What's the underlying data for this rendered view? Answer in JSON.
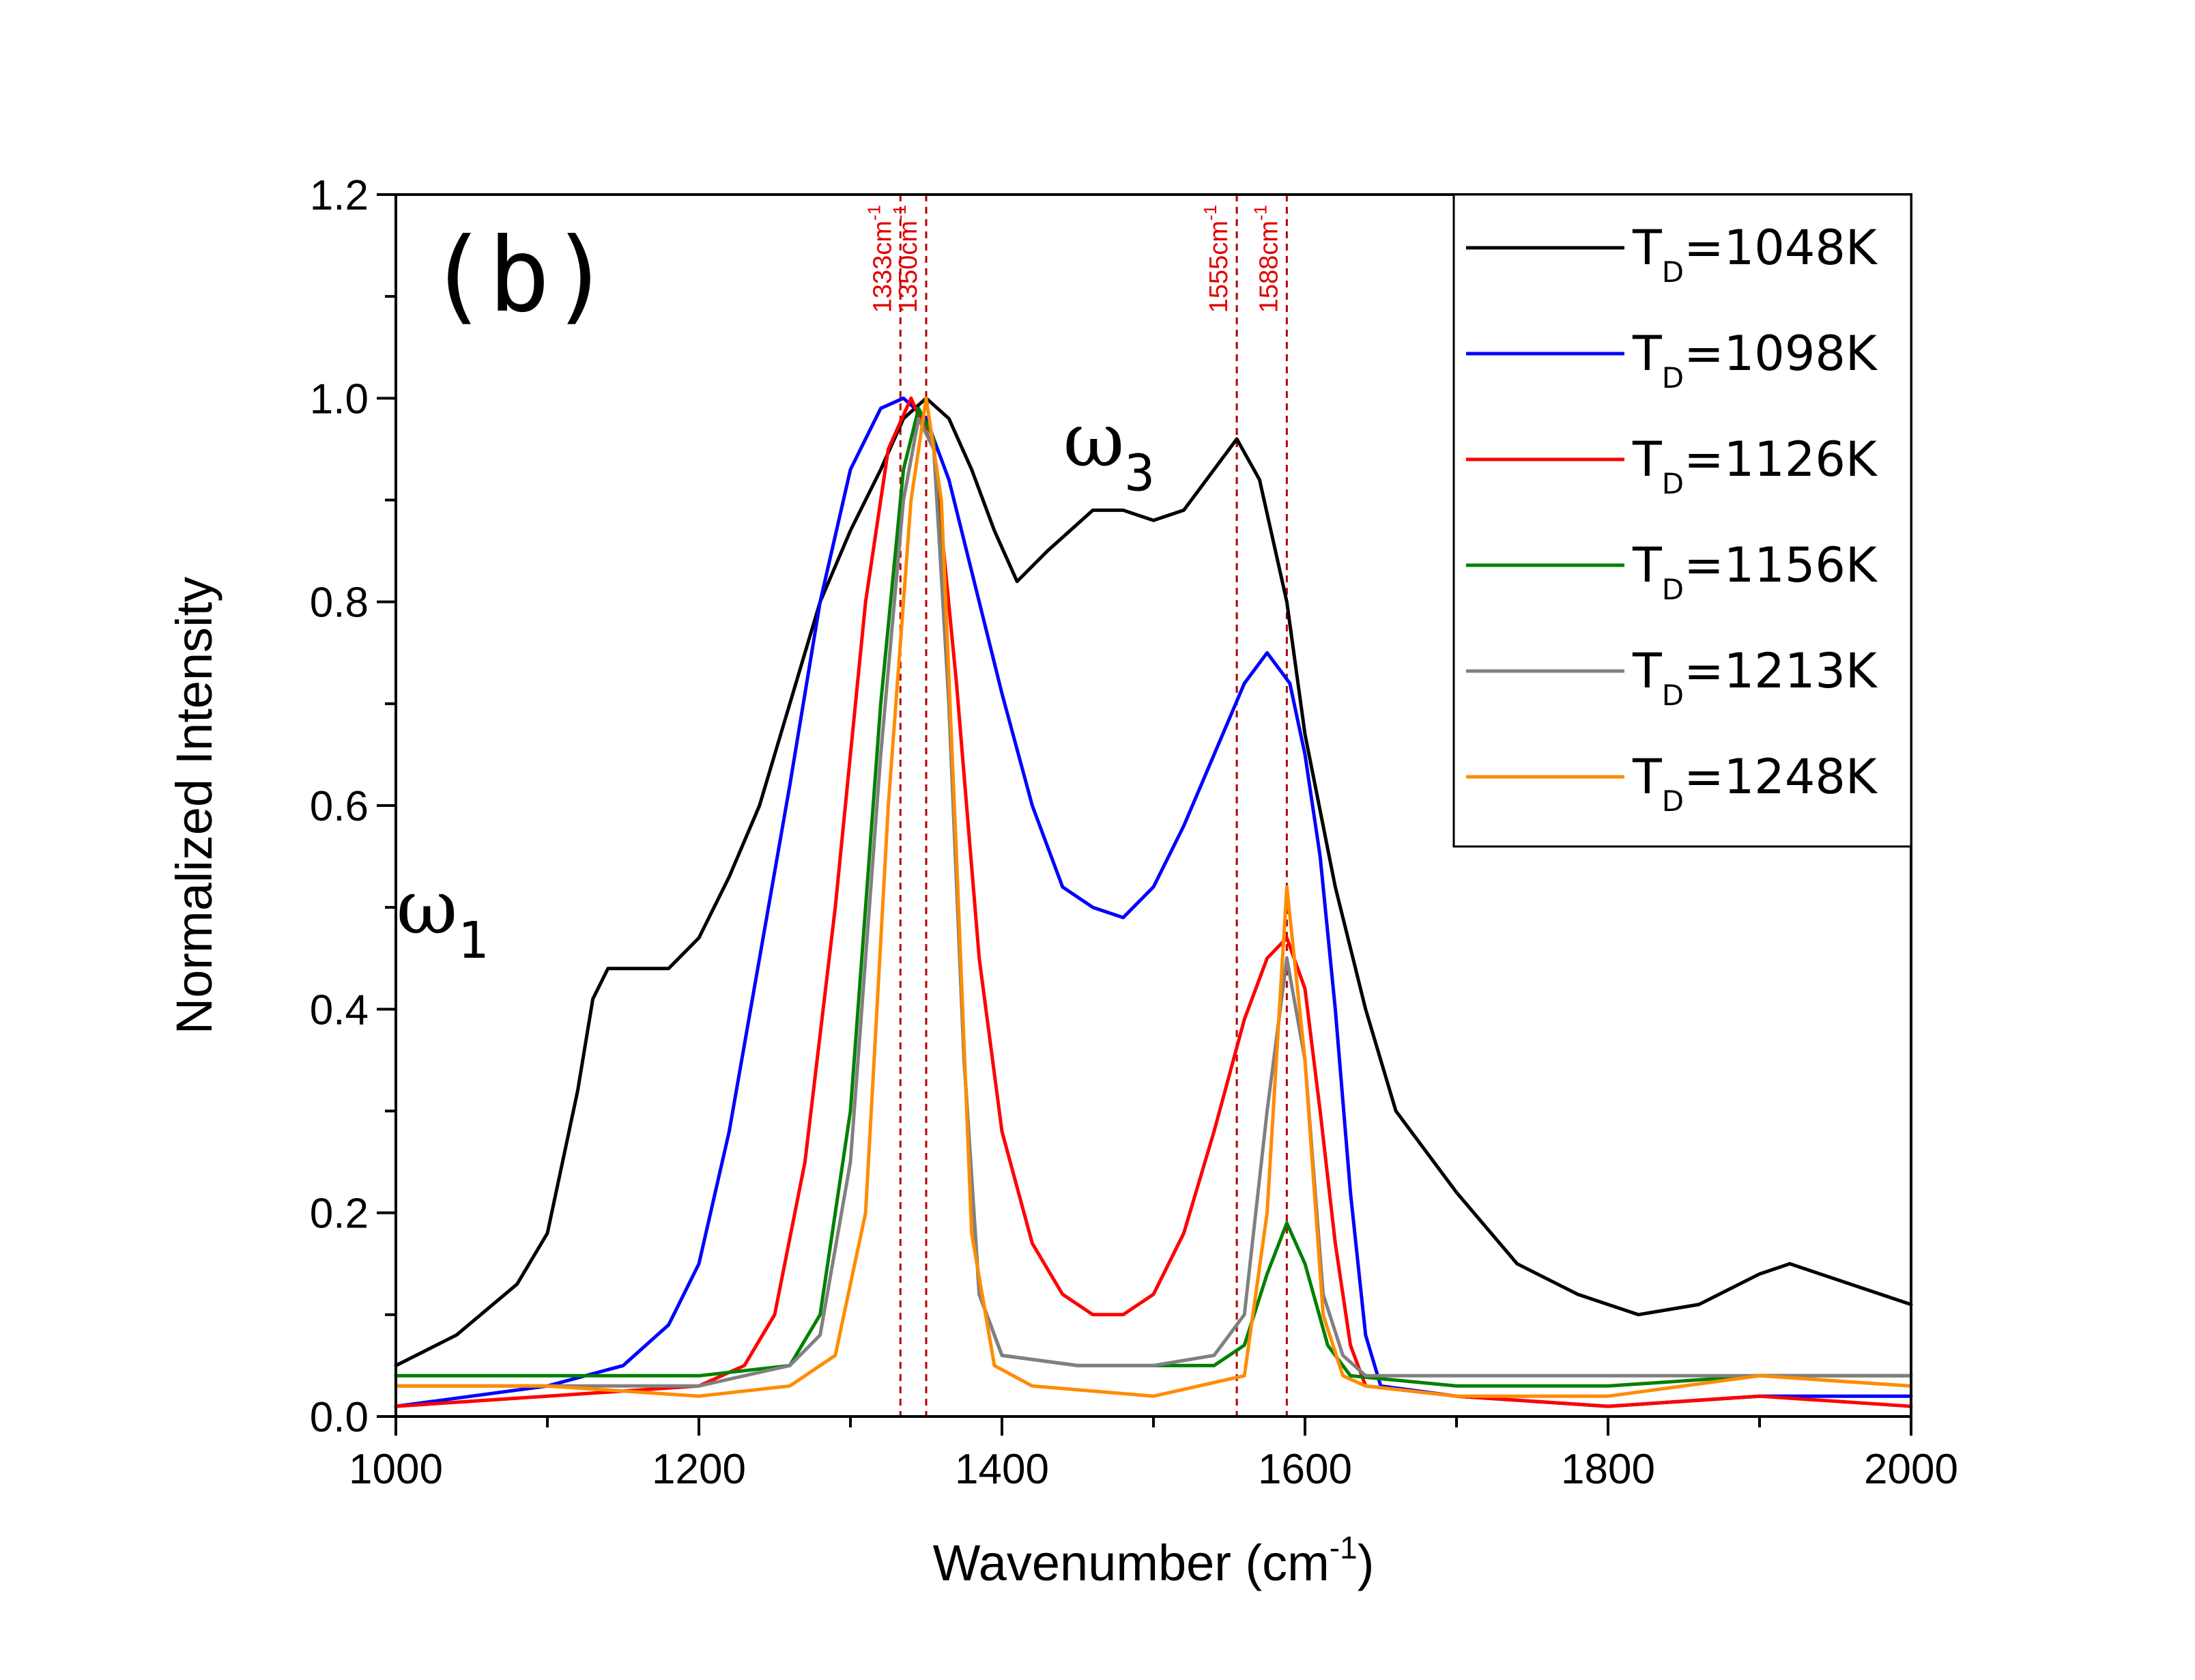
{
  "chart_data": {
    "type": "line",
    "title": "",
    "panel_label": "(b)",
    "xlabel": "Wavenumber (cm",
    "xlabel_sup": "-1",
    "xlabel_end": ")",
    "ylabel": "Normalized Intensity",
    "xlim": [
      1000,
      2000
    ],
    "ylim": [
      0,
      1.2
    ],
    "x_ticks": [
      1000,
      1200,
      1400,
      1600,
      1800,
      2000
    ],
    "x_tick_labels": [
      "1000",
      "1200",
      "1400",
      "1600",
      "1800",
      "2000"
    ],
    "y_ticks": [
      0.0,
      0.2,
      0.4,
      0.6,
      0.8,
      1.0,
      1.2
    ],
    "y_tick_labels": [
      "0.0",
      "0.2",
      "0.4",
      "0.6",
      "0.8",
      "1.0",
      "1.2"
    ],
    "grid": false,
    "legend_position": "top-right",
    "annotations": {
      "omega1": {
        "symbol": "ω",
        "sub": "1",
        "x": 1140,
        "y": 0.5
      },
      "omega3": {
        "symbol": "ω",
        "sub": "3",
        "x": 1490,
        "y": 0.92
      }
    },
    "reference_lines": [
      {
        "x": 1333,
        "label": "1333cm",
        "sup": "-1"
      },
      {
        "x": 1350,
        "label": "1350cm",
        "sup": "-1"
      },
      {
        "x": 1555,
        "label": "1555cm",
        "sup": "-1"
      },
      {
        "x": 1588,
        "label": "1588cm",
        "sup": "-1"
      }
    ],
    "series": [
      {
        "name_main": "T",
        "name_sub": "D",
        "name_rest": "=1048K",
        "color": "#000000",
        "x": [
          1000,
          1040,
          1080,
          1100,
          1120,
          1130,
          1140,
          1160,
          1180,
          1200,
          1220,
          1240,
          1260,
          1280,
          1300,
          1320,
          1335,
          1350,
          1365,
          1380,
          1395,
          1410,
          1430,
          1460,
          1480,
          1500,
          1520,
          1540,
          1555,
          1570,
          1588,
          1600,
          1620,
          1640,
          1660,
          1700,
          1740,
          1780,
          1820,
          1860,
          1900,
          1920,
          1960,
          2000
        ],
        "y": [
          0.05,
          0.08,
          0.13,
          0.18,
          0.32,
          0.41,
          0.44,
          0.44,
          0.44,
          0.47,
          0.53,
          0.6,
          0.7,
          0.8,
          0.87,
          0.93,
          0.98,
          1.0,
          0.98,
          0.93,
          0.87,
          0.82,
          0.85,
          0.89,
          0.89,
          0.88,
          0.89,
          0.93,
          0.96,
          0.92,
          0.8,
          0.67,
          0.52,
          0.4,
          0.3,
          0.22,
          0.15,
          0.12,
          0.1,
          0.11,
          0.14,
          0.15,
          0.13,
          0.11
        ]
      },
      {
        "name_main": "T",
        "name_sub": "D",
        "name_rest": "=1098K",
        "color": "#0000ff",
        "x": [
          1000,
          1050,
          1100,
          1150,
          1180,
          1200,
          1220,
          1240,
          1260,
          1280,
          1300,
          1320,
          1335,
          1350,
          1365,
          1380,
          1400,
          1420,
          1440,
          1460,
          1480,
          1500,
          1520,
          1540,
          1560,
          1575,
          1590,
          1600,
          1610,
          1620,
          1630,
          1640,
          1650,
          1700,
          1800,
          1900,
          2000
        ],
        "y": [
          0.01,
          0.02,
          0.03,
          0.05,
          0.09,
          0.15,
          0.28,
          0.45,
          0.62,
          0.8,
          0.93,
          0.99,
          1.0,
          0.98,
          0.92,
          0.83,
          0.71,
          0.6,
          0.52,
          0.5,
          0.49,
          0.52,
          0.58,
          0.65,
          0.72,
          0.75,
          0.72,
          0.65,
          0.55,
          0.4,
          0.22,
          0.08,
          0.03,
          0.02,
          0.01,
          0.02,
          0.02
        ]
      },
      {
        "name_main": "T",
        "name_sub": "D",
        "name_rest": "=1126K",
        "color": "#ff0000",
        "x": [
          1000,
          1100,
          1200,
          1230,
          1250,
          1270,
          1290,
          1310,
          1325,
          1340,
          1355,
          1370,
          1385,
          1400,
          1420,
          1440,
          1460,
          1480,
          1500,
          1520,
          1540,
          1560,
          1575,
          1588,
          1600,
          1610,
          1620,
          1630,
          1640,
          1700,
          1800,
          1900,
          2000
        ],
        "y": [
          0.01,
          0.02,
          0.03,
          0.05,
          0.1,
          0.25,
          0.5,
          0.8,
          0.95,
          1.0,
          0.95,
          0.72,
          0.45,
          0.28,
          0.17,
          0.12,
          0.1,
          0.1,
          0.12,
          0.18,
          0.28,
          0.39,
          0.45,
          0.47,
          0.42,
          0.3,
          0.17,
          0.07,
          0.03,
          0.02,
          0.01,
          0.02,
          0.01
        ]
      },
      {
        "name_main": "T",
        "name_sub": "D",
        "name_rest": "=1156K",
        "color": "#008000",
        "x": [
          1000,
          1100,
          1200,
          1260,
          1280,
          1300,
          1320,
          1335,
          1345,
          1355,
          1365,
          1375,
          1385,
          1400,
          1450,
          1500,
          1540,
          1560,
          1575,
          1588,
          1600,
          1615,
          1630,
          1700,
          1800,
          1900,
          2000
        ],
        "y": [
          0.04,
          0.04,
          0.04,
          0.05,
          0.1,
          0.3,
          0.7,
          0.93,
          0.99,
          0.96,
          0.7,
          0.35,
          0.12,
          0.06,
          0.05,
          0.05,
          0.05,
          0.07,
          0.14,
          0.19,
          0.15,
          0.07,
          0.04,
          0.03,
          0.03,
          0.04,
          0.04
        ]
      },
      {
        "name_main": "T",
        "name_sub": "D",
        "name_rest": "=1213K",
        "color": "#808080",
        "x": [
          1000,
          1100,
          1200,
          1260,
          1280,
          1300,
          1320,
          1335,
          1345,
          1355,
          1365,
          1375,
          1385,
          1400,
          1450,
          1500,
          1540,
          1560,
          1575,
          1588,
          1600,
          1612,
          1625,
          1640,
          1700,
          1800,
          1900,
          2000
        ],
        "y": [
          0.03,
          0.03,
          0.03,
          0.05,
          0.08,
          0.25,
          0.65,
          0.9,
          0.98,
          0.95,
          0.7,
          0.35,
          0.12,
          0.06,
          0.05,
          0.05,
          0.06,
          0.1,
          0.3,
          0.45,
          0.35,
          0.12,
          0.06,
          0.04,
          0.04,
          0.04,
          0.04,
          0.04
        ]
      },
      {
        "name_main": "T",
        "name_sub": "D",
        "name_rest": "=1248K",
        "color": "#ff8c00",
        "x": [
          1000,
          1100,
          1200,
          1260,
          1290,
          1310,
          1325,
          1340,
          1350,
          1360,
          1370,
          1380,
          1395,
          1420,
          1500,
          1560,
          1575,
          1588,
          1600,
          1612,
          1625,
          1640,
          1700,
          1800,
          1900,
          2000
        ],
        "y": [
          0.03,
          0.03,
          0.02,
          0.03,
          0.06,
          0.2,
          0.6,
          0.9,
          1.0,
          0.9,
          0.55,
          0.18,
          0.05,
          0.03,
          0.02,
          0.04,
          0.2,
          0.52,
          0.35,
          0.1,
          0.04,
          0.03,
          0.02,
          0.02,
          0.04,
          0.03
        ]
      }
    ]
  }
}
